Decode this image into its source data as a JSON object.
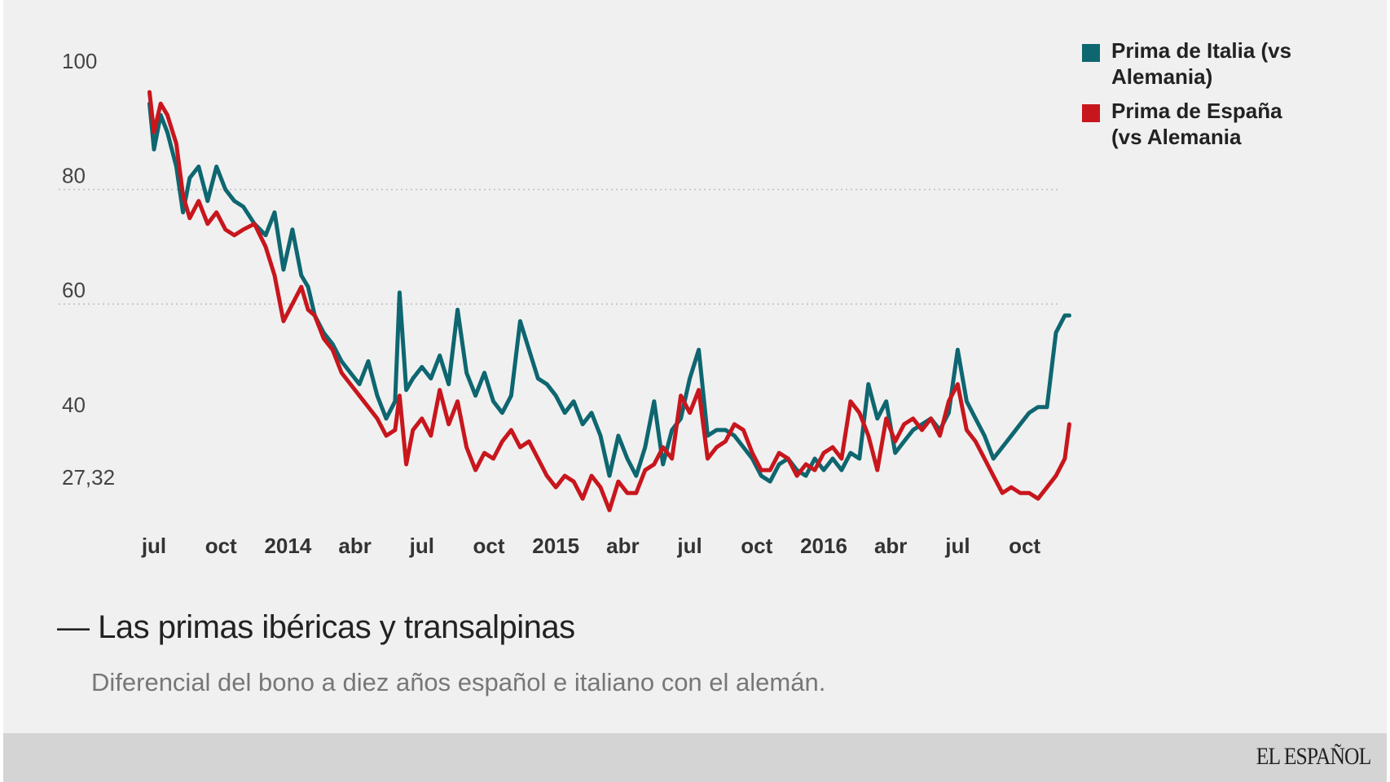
{
  "chart_data": {
    "type": "line",
    "title": "Las primas ibéricas y transalpinas",
    "subtitle": "Diferencial del bono a diez años español e italiano con el alemán.",
    "xlabel": "",
    "ylabel": "",
    "ylim": [
      14,
      100
    ],
    "y_ticks": [
      {
        "value": 100,
        "label": "100"
      },
      {
        "value": 80,
        "label": "80"
      },
      {
        "value": 60,
        "label": "60"
      },
      {
        "value": 40,
        "label": "40"
      },
      {
        "value": 27.32,
        "label": "27,32"
      }
    ],
    "grid_lines": [
      80,
      60
    ],
    "xlim": [
      0,
      41
    ],
    "x_ticks": [
      {
        "value": 0,
        "label": "jul"
      },
      {
        "value": 3,
        "label": "oct"
      },
      {
        "value": 6,
        "label": "2014"
      },
      {
        "value": 9,
        "label": "abr"
      },
      {
        "value": 12,
        "label": "jul"
      },
      {
        "value": 15,
        "label": "oct"
      },
      {
        "value": 18,
        "label": "2015"
      },
      {
        "value": 21,
        "label": "abr"
      },
      {
        "value": 24,
        "label": "jul"
      },
      {
        "value": 27,
        "label": "oct"
      },
      {
        "value": 30,
        "label": "2016"
      },
      {
        "value": 33,
        "label": "abr"
      },
      {
        "value": 36,
        "label": "jul"
      },
      {
        "value": 39,
        "label": "oct"
      }
    ],
    "legend_position": "top-right",
    "series": [
      {
        "name": "Prima de Italia (vs Alemania)",
        "color": "#0e6670",
        "x": [
          -0.2,
          0,
          0.3,
          0.6,
          1.0,
          1.3,
          1.6,
          2.0,
          2.4,
          2.8,
          3.2,
          3.6,
          4.0,
          4.5,
          5.0,
          5.4,
          5.8,
          6.2,
          6.6,
          6.9,
          7.2,
          7.6,
          8.0,
          8.4,
          8.8,
          9.2,
          9.6,
          10.0,
          10.4,
          10.8,
          11.0,
          11.3,
          11.6,
          12.0,
          12.4,
          12.8,
          13.2,
          13.6,
          14.0,
          14.4,
          14.8,
          15.2,
          15.6,
          16.0,
          16.4,
          16.8,
          17.2,
          17.6,
          18.0,
          18.4,
          18.8,
          19.2,
          19.6,
          20.0,
          20.4,
          20.8,
          21.2,
          21.6,
          22.0,
          22.4,
          22.8,
          23.2,
          23.6,
          24.0,
          24.4,
          24.8,
          25.2,
          25.6,
          26.0,
          26.4,
          26.8,
          27.2,
          27.6,
          28.0,
          28.4,
          28.8,
          29.2,
          29.6,
          30.0,
          30.4,
          30.8,
          31.2,
          31.6,
          32.0,
          32.4,
          32.8,
          33.2,
          33.6,
          34.0,
          34.4,
          34.8,
          35.2,
          35.6,
          36.0,
          36.4,
          36.8,
          37.2,
          37.6,
          38.0,
          38.4,
          38.8,
          39.2,
          39.6,
          40.0,
          40.4,
          40.8,
          41.0
        ],
        "values": [
          95,
          87,
          93,
          90,
          84,
          76,
          82,
          84,
          78,
          84,
          80,
          78,
          77,
          74,
          72,
          76,
          66,
          73,
          65,
          63,
          58,
          55,
          53,
          50,
          48,
          46,
          50,
          44,
          40,
          43,
          62,
          45,
          47,
          49,
          47,
          51,
          46,
          59,
          48,
          44,
          48,
          43,
          41,
          44,
          57,
          52,
          47,
          46,
          44,
          41,
          43,
          39,
          41,
          37,
          30,
          37,
          33,
          30,
          35,
          43,
          32,
          38,
          40,
          47,
          52,
          37,
          38,
          38,
          37,
          35,
          33,
          30,
          29,
          32,
          33,
          31,
          30,
          33,
          31,
          33,
          31,
          34,
          33,
          46,
          40,
          43,
          34,
          36,
          38,
          39,
          40,
          38,
          41,
          52,
          43,
          40,
          37,
          33,
          35,
          37,
          39,
          41,
          42,
          42,
          55,
          58,
          58
        ]
      },
      {
        "name": "Prima de España (vs Alemania",
        "color": "#c8161d",
        "x": [
          -0.2,
          0,
          0.3,
          0.6,
          1.0,
          1.3,
          1.6,
          2.0,
          2.4,
          2.8,
          3.2,
          3.6,
          4.0,
          4.5,
          5.0,
          5.4,
          5.8,
          6.2,
          6.6,
          6.9,
          7.2,
          7.6,
          8.0,
          8.4,
          8.8,
          9.2,
          9.6,
          10.0,
          10.4,
          10.8,
          11.0,
          11.3,
          11.6,
          12.0,
          12.4,
          12.8,
          13.2,
          13.6,
          14.0,
          14.4,
          14.8,
          15.2,
          15.6,
          16.0,
          16.4,
          16.8,
          17.2,
          17.6,
          18.0,
          18.4,
          18.8,
          19.2,
          19.6,
          20.0,
          20.4,
          20.8,
          21.2,
          21.6,
          22.0,
          22.4,
          22.8,
          23.2,
          23.6,
          24.0,
          24.4,
          24.8,
          25.2,
          25.6,
          26.0,
          26.4,
          26.8,
          27.2,
          27.6,
          28.0,
          28.4,
          28.8,
          29.2,
          29.6,
          30.0,
          30.4,
          30.8,
          31.2,
          31.6,
          32.0,
          32.4,
          32.8,
          33.2,
          33.6,
          34.0,
          34.4,
          34.8,
          35.2,
          35.6,
          36.0,
          36.4,
          36.8,
          37.2,
          37.6,
          38.0,
          38.4,
          38.8,
          39.2,
          39.6,
          40.0,
          40.4,
          40.8,
          41.0
        ],
        "values": [
          97,
          90,
          95,
          93,
          88,
          79,
          75,
          78,
          74,
          76,
          73,
          72,
          73,
          74,
          70,
          65,
          57,
          60,
          63,
          59,
          58,
          54,
          52,
          48,
          46,
          44,
          42,
          40,
          37,
          38,
          44,
          32,
          38,
          40,
          37,
          45,
          39,
          43,
          35,
          31,
          34,
          33,
          36,
          38,
          35,
          36,
          33,
          30,
          28,
          30,
          29,
          26,
          30,
          28,
          24,
          29,
          27,
          27,
          31,
          32,
          35,
          33,
          44,
          41,
          45,
          33,
          35,
          36,
          39,
          38,
          34,
          31,
          31,
          34,
          33,
          30,
          32,
          31,
          34,
          35,
          33,
          43,
          41,
          37,
          31,
          40,
          36,
          39,
          40,
          38,
          40,
          37,
          43,
          46,
          38,
          36,
          33,
          30,
          27,
          28,
          27,
          27,
          26,
          28,
          30,
          33,
          39
        ]
      }
    ]
  },
  "brand": "EL ESPAÑOL",
  "colors": {
    "background": "#f0f0f0",
    "footer": "#d4d4d4",
    "grid": "#bdbdbd"
  }
}
